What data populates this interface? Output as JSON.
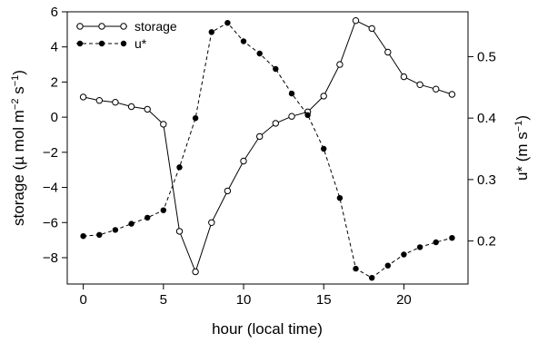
{
  "chart_data": {
    "type": "line",
    "xlabel": "hour (local time)",
    "ylabel_left": "storage (µ mol m^-2 s^-1)",
    "ylabel_right": "u* (m s^-1)",
    "x": [
      0,
      1,
      2,
      3,
      4,
      5,
      6,
      7,
      8,
      9,
      10,
      11,
      12,
      13,
      14,
      15,
      16,
      17,
      18,
      19,
      20,
      21,
      22,
      23
    ],
    "xlim": [
      -1,
      24
    ],
    "xticks": [
      0,
      5,
      10,
      15,
      20
    ],
    "ylim_left": [
      -9.5,
      6
    ],
    "yticks_left": [
      -8,
      -6,
      -4,
      -2,
      0,
      2,
      4,
      6
    ],
    "ylim_right": [
      0.13,
      0.573
    ],
    "yticks_right": [
      0.2,
      0.3,
      0.4,
      0.5
    ],
    "grid": false,
    "legend_position": "top-left",
    "series": [
      {
        "name": "storage",
        "axis": "left",
        "marker": "open-circle",
        "linestyle": "solid",
        "values": [
          1.15,
          0.95,
          0.85,
          0.6,
          0.45,
          -0.4,
          -6.5,
          -8.8,
          -6.0,
          -4.2,
          -2.5,
          -1.1,
          -0.35,
          0.05,
          0.3,
          1.2,
          3.0,
          5.5,
          5.05,
          3.7,
          2.3,
          1.85,
          1.6,
          1.3
        ]
      },
      {
        "name": "u*",
        "axis": "right",
        "marker": "filled-circle",
        "linestyle": "dashed",
        "values": [
          0.208,
          0.21,
          0.218,
          0.228,
          0.238,
          0.25,
          0.32,
          0.4,
          0.54,
          0.555,
          0.525,
          0.505,
          0.48,
          0.44,
          0.405,
          0.35,
          0.27,
          0.155,
          0.14,
          0.16,
          0.178,
          0.19,
          0.198,
          0.205
        ]
      }
    ]
  }
}
